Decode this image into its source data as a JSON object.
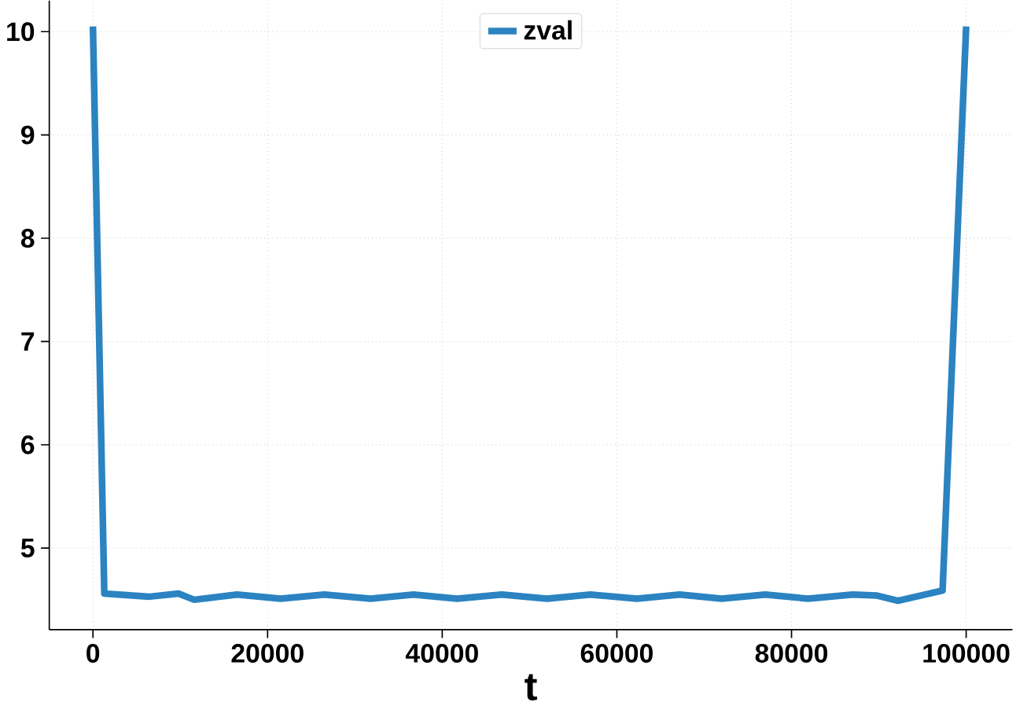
{
  "chart_data": {
    "type": "line",
    "xlabel": "t",
    "x": [
      0,
      1300,
      6500,
      9800,
      11600,
      16500,
      21500,
      26500,
      31800,
      36700,
      41700,
      46800,
      52000,
      57000,
      62300,
      67200,
      72000,
      77000,
      81900,
      87000,
      89800,
      92200,
      97300,
      100000
    ],
    "series": [
      {
        "name": "zval",
        "color": "#2b83c1",
        "values": [
          10.05,
          4.56,
          4.53,
          4.56,
          4.5,
          4.55,
          4.51,
          4.55,
          4.51,
          4.55,
          4.51,
          4.55,
          4.51,
          4.55,
          4.51,
          4.55,
          4.51,
          4.55,
          4.51,
          4.55,
          4.54,
          4.49,
          4.59,
          10.05
        ]
      }
    ],
    "xlim": [
      -5000,
      105300
    ],
    "ylim": [
      4.21,
      10.3
    ],
    "xticks": [
      0,
      20000,
      40000,
      60000,
      80000,
      100000
    ],
    "yticks": [
      5,
      6,
      7,
      8,
      9,
      10
    ],
    "grid": true,
    "legend": "top",
    "line_style": "solid",
    "marker": "none"
  }
}
